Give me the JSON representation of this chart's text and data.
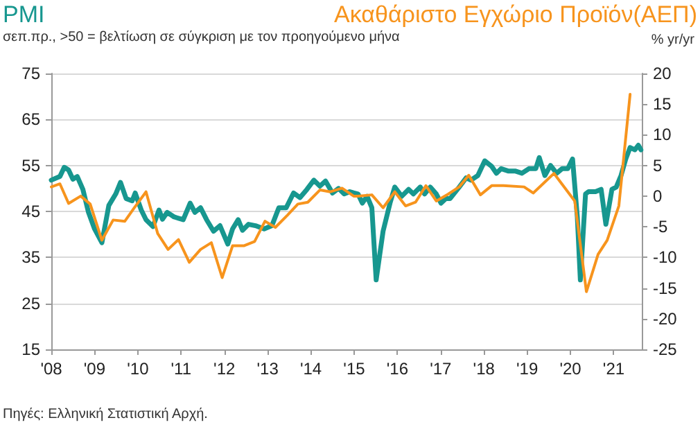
{
  "chart_data": {
    "type": "line",
    "ylabel": "σεπ.πρ., >50 = βελτίωση σε σύγκριση με τον προηγούμενο μήνα",
    "y2label": "% yr/yr",
    "annotations": [
      "Πηγές: Ελληνική Στατιστική Αρχή."
    ],
    "xlim": [
      2008,
      2021.65
    ],
    "xticks": [
      {
        "value": 2008,
        "label": "'08"
      },
      {
        "value": 2009,
        "label": "'09"
      },
      {
        "value": 2010,
        "label": "'10"
      },
      {
        "value": 2011,
        "label": "'11"
      },
      {
        "value": 2012,
        "label": "'12"
      },
      {
        "value": 2013,
        "label": "'13"
      },
      {
        "value": 2014,
        "label": "'14"
      },
      {
        "value": 2015,
        "label": "'15"
      },
      {
        "value": 2016,
        "label": "'16"
      },
      {
        "value": 2017,
        "label": "'17"
      },
      {
        "value": 2018,
        "label": "'18"
      },
      {
        "value": 2019,
        "label": "'19"
      },
      {
        "value": 2020,
        "label": "'20"
      },
      {
        "value": 2021,
        "label": "'21"
      }
    ],
    "ylim": [
      15,
      75
    ],
    "yticks": [
      15,
      25,
      35,
      45,
      55,
      65,
      75
    ],
    "y2lim": [
      -25,
      20
    ],
    "y2ticks": [
      -25,
      -20,
      -15,
      -10,
      -5,
      0,
      5,
      10,
      15,
      20
    ],
    "grid": "y",
    "marker": "none",
    "line_style": "solid",
    "series": [
      {
        "name": "PMI",
        "color": "#17978f",
        "axis": "y",
        "x": [
          2008.0,
          2008.2,
          2008.3,
          2008.4,
          2008.5,
          2008.6,
          2008.73,
          2008.86,
          2009.0,
          2009.17,
          2009.33,
          2009.49,
          2009.6,
          2009.73,
          2009.87,
          2009.94,
          2010.08,
          2010.19,
          2010.35,
          2010.49,
          2010.57,
          2010.68,
          2010.84,
          2011.05,
          2011.21,
          2011.32,
          2011.45,
          2011.59,
          2011.75,
          2011.9,
          2012.08,
          2012.19,
          2012.32,
          2012.42,
          2012.56,
          2012.72,
          2012.92,
          2013.1,
          2013.26,
          2013.43,
          2013.6,
          2013.75,
          2013.91,
          2014.07,
          2014.21,
          2014.34,
          2014.5,
          2014.64,
          2014.77,
          2014.9,
          2015.0,
          2015.09,
          2015.19,
          2015.3,
          2015.41,
          2015.51,
          2015.67,
          2015.83,
          2015.94,
          2016.1,
          2016.26,
          2016.37,
          2016.53,
          2016.63,
          2016.76,
          2016.9,
          2017.01,
          2017.12,
          2017.22,
          2017.43,
          2017.59,
          2017.7,
          2017.86,
          2018.02,
          2018.18,
          2018.29,
          2018.4,
          2018.56,
          2018.72,
          2018.88,
          2019.04,
          2019.2,
          2019.28,
          2019.41,
          2019.54,
          2019.68,
          2019.81,
          2019.94,
          2020.05,
          2020.16,
          2020.23,
          2020.35,
          2020.42,
          2020.58,
          2020.71,
          2020.82,
          2020.96,
          2021.06,
          2021.17,
          2021.28,
          2021.38,
          2021.49,
          2021.57,
          2021.63
        ],
        "values": [
          51.8,
          52.6,
          54.6,
          54.0,
          52.0,
          52.6,
          49.8,
          44.8,
          41.2,
          38.2,
          46.3,
          48.8,
          51.3,
          47.8,
          47.3,
          49.0,
          45.3,
          43.2,
          41.7,
          45.3,
          43.3,
          44.8,
          43.8,
          43.2,
          46.8,
          44.8,
          45.8,
          43.2,
          40.7,
          41.9,
          37.9,
          41.2,
          43.2,
          40.9,
          42.2,
          41.9,
          41.2,
          41.9,
          45.8,
          45.8,
          49.0,
          48.0,
          49.8,
          51.8,
          50.5,
          51.6,
          49.0,
          50.0,
          48.8,
          49.3,
          49.0,
          48.8,
          46.8,
          48.3,
          45.8,
          30.1,
          40.7,
          46.8,
          50.3,
          48.3,
          49.8,
          48.8,
          50.3,
          48.8,
          50.3,
          48.8,
          46.8,
          47.8,
          47.8,
          50.3,
          52.3,
          51.8,
          52.8,
          56.0,
          54.8,
          53.3,
          54.3,
          53.8,
          53.8,
          53.3,
          54.3,
          54.3,
          56.7,
          52.8,
          55.0,
          53.3,
          54.3,
          54.3,
          56.4,
          43.8,
          30.1,
          48.8,
          49.3,
          49.3,
          49.8,
          42.2,
          49.8,
          50.3,
          52.8,
          56.4,
          58.9,
          58.4,
          59.4,
          58.4
        ]
      },
      {
        "name": "Ακαθάριστο Εγχώριο Προϊόν(ΑΕΠ)",
        "color": "#f7941d",
        "axis": "y2",
        "x": [
          2008.0,
          2008.2,
          2008.4,
          2008.68,
          2008.9,
          2009.17,
          2009.43,
          2009.7,
          2009.92,
          2010.19,
          2010.46,
          2010.7,
          2010.94,
          2011.19,
          2011.45,
          2011.7,
          2011.95,
          2012.19,
          2012.45,
          2012.7,
          2012.94,
          2013.18,
          2013.46,
          2013.7,
          2013.93,
          2014.21,
          2014.45,
          2014.72,
          2014.99,
          2015.09,
          2015.41,
          2015.67,
          2015.94,
          2016.19,
          2016.42,
          2016.66,
          2016.9,
          2017.17,
          2017.43,
          2017.65,
          2017.92,
          2018.18,
          2018.45,
          2018.93,
          2019.14,
          2019.62,
          2020.1,
          2020.37,
          2020.64,
          2020.85,
          2021.12,
          2021.38
        ],
        "values": [
          1.5,
          2.0,
          -1.2,
          0.0,
          -1.3,
          -7.2,
          -3.9,
          -4.1,
          -1.9,
          0.7,
          -6.1,
          -8.7,
          -7.1,
          -10.8,
          -8.7,
          -7.6,
          -13.3,
          -8.1,
          -8.1,
          -7.4,
          -4.1,
          -5.1,
          -3.1,
          -1.3,
          -1.0,
          1.0,
          0.7,
          1.3,
          0.0,
          0.0,
          0.2,
          -1.9,
          0.7,
          -1.6,
          -1.0,
          1.7,
          -0.8,
          0.3,
          1.5,
          3.4,
          0.2,
          1.7,
          1.7,
          1.5,
          0.5,
          3.7,
          -0.8,
          -15.6,
          -9.5,
          -7.2,
          -1.6,
          16.6
        ]
      }
    ]
  }
}
